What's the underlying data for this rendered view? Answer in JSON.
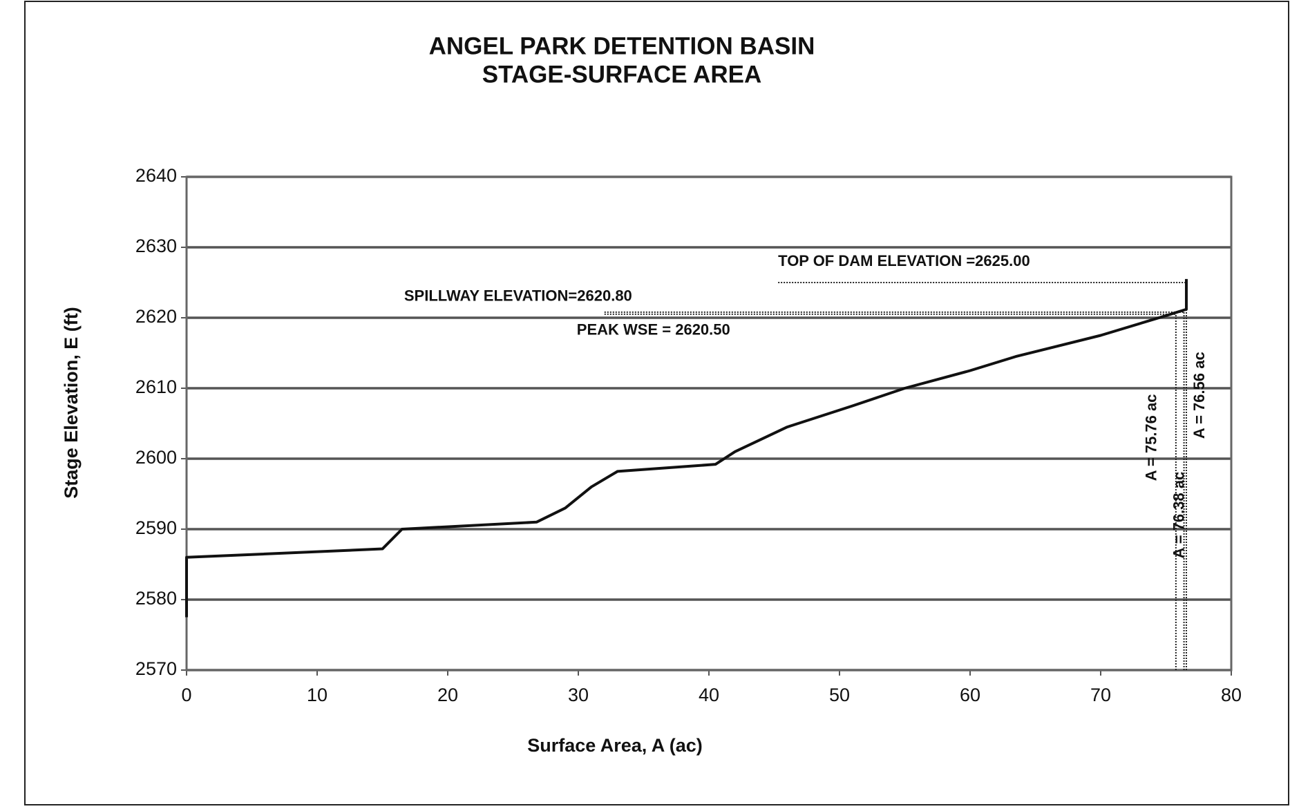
{
  "chart_data": {
    "type": "line",
    "title": "ANGEL PARK DETENTION BASIN",
    "subtitle": "STAGE-SURFACE AREA",
    "x_label": "Surface Area, A (ac)",
    "y_label": "Stage Elevation, E (ft)",
    "xlim": [
      0,
      80
    ],
    "ylim": [
      2570,
      2640
    ],
    "xticks": [
      0,
      10,
      20,
      30,
      40,
      50,
      60,
      70,
      80
    ],
    "yticks": [
      2570,
      2580,
      2590,
      2600,
      2610,
      2620,
      2630,
      2640
    ],
    "grid": true,
    "series": [
      {
        "name": "Stage-Surface Area",
        "color": "#111111",
        "x": [
          0,
          0,
          15,
          16.5,
          26.8,
          29,
          31,
          33,
          40.5,
          42,
          46,
          51,
          55,
          60,
          63.5,
          70,
          75,
          76.56,
          76.56
        ],
        "values": [
          2577.5,
          2586,
          2587.2,
          2590,
          2591,
          2593,
          2596,
          2598.2,
          2599.2,
          2601,
          2604.5,
          2607.5,
          2610,
          2612.5,
          2614.5,
          2617.5,
          2620.3,
          2621.2,
          2625.5
        ]
      }
    ],
    "annotations": [
      {
        "label": "TOP OF DAM ELEVATION =2625.00",
        "y": 2625,
        "x_from": 45.3,
        "area": 76.56,
        "area_label": "A = 76.56 ac"
      },
      {
        "label": "SPILLWAY  ELEVATION=2620.80",
        "y": 2620.8,
        "x_from": 32,
        "area": 76.38,
        "area_label": "A = 76.38 ac"
      },
      {
        "label": "PEAK WSE = 2620.50",
        "y": 2620.5,
        "x_from": 32,
        "area": 75.76,
        "area_label": "A = 75.76 ac"
      }
    ]
  }
}
